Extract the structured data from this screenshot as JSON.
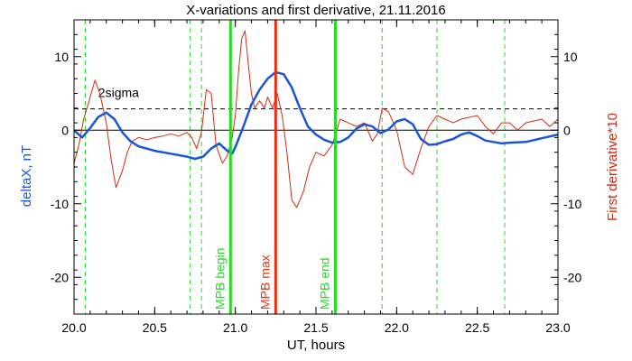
{
  "chart_data": {
    "type": "line",
    "title": "X-variations and first derivative, 21.11.2016",
    "xlabel": "UT, hours",
    "ylabel_left": "deltaX, nT",
    "ylabel_right": "First derivative*10",
    "xlim": [
      20.0,
      23.0
    ],
    "ylim": [
      -25,
      15
    ],
    "x_ticks": [
      20.0,
      20.5,
      21.0,
      21.5,
      22.0,
      22.5,
      23.0
    ],
    "x_tick_labels": [
      "20.0",
      "20.5",
      "21.0",
      "21.5",
      "22.0",
      "22.5",
      "23.0"
    ],
    "y_ticks": [
      10,
      0,
      -10,
      -20
    ],
    "y_tick_labels": [
      "10",
      "0",
      "-10",
      "-20"
    ],
    "colors": {
      "deltaX": "#1a55d6",
      "derivative": "#d42a10",
      "green": "#22dd22",
      "mpb_max": "#e83010",
      "axes": "#000000"
    },
    "series": [
      {
        "key": "deltaX",
        "x": [
          20.0,
          20.05,
          20.1,
          20.15,
          20.2,
          20.25,
          20.3,
          20.35,
          20.4,
          20.5,
          20.6,
          20.7,
          20.75,
          20.8,
          20.85,
          20.9,
          20.95,
          20.98,
          21.0,
          21.05,
          21.1,
          21.15,
          21.2,
          21.25,
          21.3,
          21.35,
          21.4,
          21.45,
          21.5,
          21.55,
          21.6,
          21.65,
          21.7,
          21.75,
          21.8,
          21.85,
          21.9,
          21.95,
          22.0,
          22.05,
          22.1,
          22.15,
          22.2,
          22.25,
          22.3,
          22.35,
          22.4,
          22.45,
          22.5,
          22.55,
          22.6,
          22.65,
          22.7,
          22.8,
          22.9,
          23.0
        ],
        "y": [
          0,
          -1.0,
          0.3,
          1.8,
          2.4,
          1.5,
          -0.3,
          -1.5,
          -2.2,
          -2.8,
          -3.2,
          -3.6,
          -3.9,
          -3.6,
          -2.5,
          -1.8,
          -2.8,
          -3.2,
          -2.3,
          0.5,
          3.5,
          5.5,
          7.0,
          7.9,
          7.6,
          5.8,
          3.0,
          0.5,
          -0.6,
          -1.3,
          -1.7,
          -1.6,
          -1.0,
          0.2,
          0.8,
          0.5,
          -0.4,
          0.1,
          1.2,
          1.5,
          0.8,
          -1.2,
          -2.0,
          -1.9,
          -1.5,
          -1.2,
          -0.6,
          -0.3,
          -0.8,
          -1.4,
          -1.6,
          -1.8,
          -1.7,
          -1.6,
          -1.1,
          -0.6
        ]
      },
      {
        "key": "derivative",
        "x": [
          20.0,
          20.03,
          20.06,
          20.1,
          20.13,
          20.16,
          20.2,
          20.23,
          20.26,
          20.3,
          20.33,
          20.36,
          20.4,
          20.45,
          20.5,
          20.55,
          20.6,
          20.65,
          20.7,
          20.73,
          20.76,
          20.79,
          20.82,
          20.85,
          20.88,
          20.92,
          20.95,
          20.98,
          21.0,
          21.02,
          21.04,
          21.06,
          21.08,
          21.1,
          21.12,
          21.15,
          21.18,
          21.2,
          21.23,
          21.26,
          21.29,
          21.32,
          21.35,
          21.38,
          21.42,
          21.46,
          21.5,
          21.55,
          21.6,
          21.65,
          21.7,
          21.75,
          21.8,
          21.85,
          21.88,
          21.91,
          21.95,
          22.0,
          22.05,
          22.1,
          22.15,
          22.2,
          22.25,
          22.3,
          22.35,
          22.4,
          22.5,
          22.55,
          22.6,
          22.65,
          22.7,
          22.75,
          22.8,
          22.9,
          22.95,
          23.0
        ],
        "y": [
          -4.5,
          -2.0,
          1.5,
          4.5,
          6.8,
          5.0,
          1.0,
          -4.0,
          -7.8,
          -5.5,
          -3.0,
          -1.5,
          -1.0,
          -1.3,
          -1.0,
          -0.8,
          -0.5,
          -0.8,
          -0.3,
          -1.0,
          -2.5,
          -0.3,
          5.5,
          5.0,
          -2.0,
          -4.5,
          -3.5,
          -1.0,
          2.0,
          8.0,
          12.5,
          13.5,
          9.0,
          5.0,
          3.0,
          4.0,
          3.0,
          4.5,
          3.0,
          5.0,
          2.0,
          -3.0,
          -9.5,
          -10.5,
          -8.5,
          -5.0,
          -3.0,
          -3.5,
          -2.0,
          1.5,
          1.0,
          0.5,
          1.0,
          -1.5,
          -0.5,
          3.0,
          2.5,
          0.0,
          -5.0,
          -6.0,
          -2.5,
          0.5,
          2.0,
          1.5,
          1.0,
          1.5,
          2.0,
          0.5,
          -0.5,
          1.0,
          1.0,
          0.0,
          1.0,
          1.5,
          0.5,
          1.5
        ]
      }
    ],
    "zero_line": 0,
    "two_sigma": {
      "value": 2.9,
      "label": "2sigma"
    },
    "dashed_green_lines_x": [
      20.07,
      20.72,
      20.79,
      21.91,
      22.25,
      22.67
    ],
    "markers": [
      {
        "key": "begin",
        "x": 20.97,
        "label": "MPB begin"
      },
      {
        "key": "max",
        "x": 21.25,
        "label": "MPB max"
      },
      {
        "key": "end",
        "x": 21.62,
        "label": "MPB end"
      }
    ],
    "grid": false
  }
}
